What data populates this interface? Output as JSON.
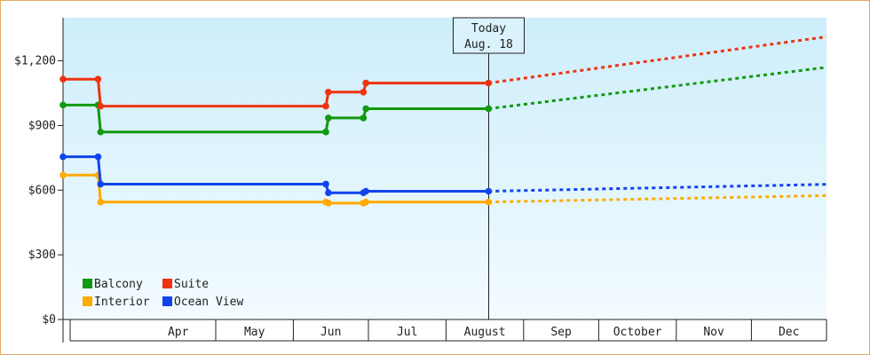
{
  "chart_data": {
    "type": "line",
    "y_ticks": [
      {
        "value": 0,
        "label": "$0"
      },
      {
        "value": 300,
        "label": "$300"
      },
      {
        "value": 600,
        "label": "$600"
      },
      {
        "value": 900,
        "label": "$900"
      },
      {
        "value": 1200,
        "label": "$1,200"
      }
    ],
    "ylim": [
      0,
      1400
    ],
    "xlim": [
      "2024-03-01",
      "2024-12-31"
    ],
    "x_ticks": [
      {
        "label": "Apr",
        "start": "2024-04-01",
        "end": "2024-05-01"
      },
      {
        "label": "May",
        "start": "2024-05-01",
        "end": "2024-06-01"
      },
      {
        "label": "Jun",
        "start": "2024-06-01",
        "end": "2024-07-01"
      },
      {
        "label": "Jul",
        "start": "2024-07-01",
        "end": "2024-08-01"
      },
      {
        "label": "August",
        "start": "2024-08-01",
        "end": "2024-09-01"
      },
      {
        "label": "Sep",
        "start": "2024-09-01",
        "end": "2024-10-01"
      },
      {
        "label": "October",
        "start": "2024-10-01",
        "end": "2024-11-01"
      },
      {
        "label": "Nov",
        "start": "2024-11-01",
        "end": "2024-12-01"
      },
      {
        "label": "Dec",
        "start": "2024-12-01",
        "end": "2024-12-31"
      }
    ],
    "today": {
      "date": "2024-08-18",
      "line1": "Today",
      "line2": "Aug. 18"
    },
    "series": [
      {
        "name": "Balcony",
        "color": "#119911",
        "history": [
          [
            "2024-03-01",
            995
          ],
          [
            "2024-03-15",
            995
          ],
          [
            "2024-03-16",
            870
          ],
          [
            "2024-06-14",
            870
          ],
          [
            "2024-06-15",
            935
          ],
          [
            "2024-06-29",
            935
          ],
          [
            "2024-06-30",
            978
          ],
          [
            "2024-08-18",
            978
          ]
        ],
        "forecast": [
          [
            "2024-08-18",
            978
          ],
          [
            "2024-12-31",
            1170
          ]
        ]
      },
      {
        "name": "Suite",
        "color": "#ee3311",
        "history": [
          [
            "2024-03-01",
            1115
          ],
          [
            "2024-03-15",
            1115
          ],
          [
            "2024-03-16",
            990
          ],
          [
            "2024-06-14",
            990
          ],
          [
            "2024-06-15",
            1055
          ],
          [
            "2024-06-29",
            1055
          ],
          [
            "2024-06-30",
            1097
          ],
          [
            "2024-08-18",
            1097
          ]
        ],
        "forecast": [
          [
            "2024-08-18",
            1097
          ],
          [
            "2024-12-31",
            1312
          ]
        ]
      },
      {
        "name": "Interior",
        "color": "#ffaa00",
        "history": [
          [
            "2024-03-01",
            670
          ],
          [
            "2024-03-15",
            670
          ],
          [
            "2024-03-16",
            545
          ],
          [
            "2024-06-14",
            545
          ],
          [
            "2024-06-15",
            540
          ],
          [
            "2024-06-29",
            540
          ],
          [
            "2024-06-30",
            545
          ],
          [
            "2024-08-18",
            545
          ]
        ],
        "forecast": [
          [
            "2024-08-18",
            545
          ],
          [
            "2024-12-31",
            575
          ]
        ]
      },
      {
        "name": "Ocean View",
        "color": "#1144ee",
        "history": [
          [
            "2024-03-01",
            755
          ],
          [
            "2024-03-15",
            755
          ],
          [
            "2024-03-16",
            628
          ],
          [
            "2024-06-14",
            628
          ],
          [
            "2024-06-15",
            588
          ],
          [
            "2024-06-29",
            588
          ],
          [
            "2024-06-30",
            595
          ],
          [
            "2024-08-18",
            595
          ]
        ],
        "forecast": [
          [
            "2024-08-18",
            595
          ],
          [
            "2024-12-31",
            627
          ]
        ]
      }
    ],
    "markers": {
      "Balcony": [
        [
          "2024-03-01",
          995
        ],
        [
          "2024-03-15",
          995
        ],
        [
          "2024-03-16",
          870
        ],
        [
          "2024-06-14",
          870
        ],
        [
          "2024-06-15",
          935
        ],
        [
          "2024-06-29",
          935
        ],
        [
          "2024-06-30",
          978
        ],
        [
          "2024-08-18",
          978
        ]
      ],
      "Suite": [
        [
          "2024-03-01",
          1115
        ],
        [
          "2024-03-15",
          1115
        ],
        [
          "2024-03-16",
          990
        ],
        [
          "2024-06-14",
          990
        ],
        [
          "2024-06-15",
          1055
        ],
        [
          "2024-06-29",
          1055
        ],
        [
          "2024-06-30",
          1097
        ],
        [
          "2024-08-18",
          1097
        ]
      ],
      "Interior": [
        [
          "2024-03-01",
          670
        ],
        [
          "2024-03-15",
          670
        ],
        [
          "2024-03-16",
          545
        ],
        [
          "2024-06-14",
          545
        ],
        [
          "2024-06-15",
          540
        ],
        [
          "2024-06-29",
          540
        ],
        [
          "2024-06-30",
          545
        ],
        [
          "2024-08-18",
          545
        ]
      ],
      "Ocean View": [
        [
          "2024-03-01",
          755
        ],
        [
          "2024-03-15",
          755
        ],
        [
          "2024-03-16",
          628
        ],
        [
          "2024-06-14",
          628
        ],
        [
          "2024-06-15",
          588
        ],
        [
          "2024-06-29",
          588
        ],
        [
          "2024-06-30",
          595
        ],
        [
          "2024-08-18",
          595
        ]
      ]
    },
    "legend": {
      "placement": "bottom-left",
      "items": [
        "Balcony",
        "Suite",
        "Interior",
        "Ocean View"
      ]
    }
  },
  "colors": {
    "plot_top": "#cdeefb",
    "plot_bottom": "#f3fbff",
    "frame_border": "#e3a863"
  }
}
